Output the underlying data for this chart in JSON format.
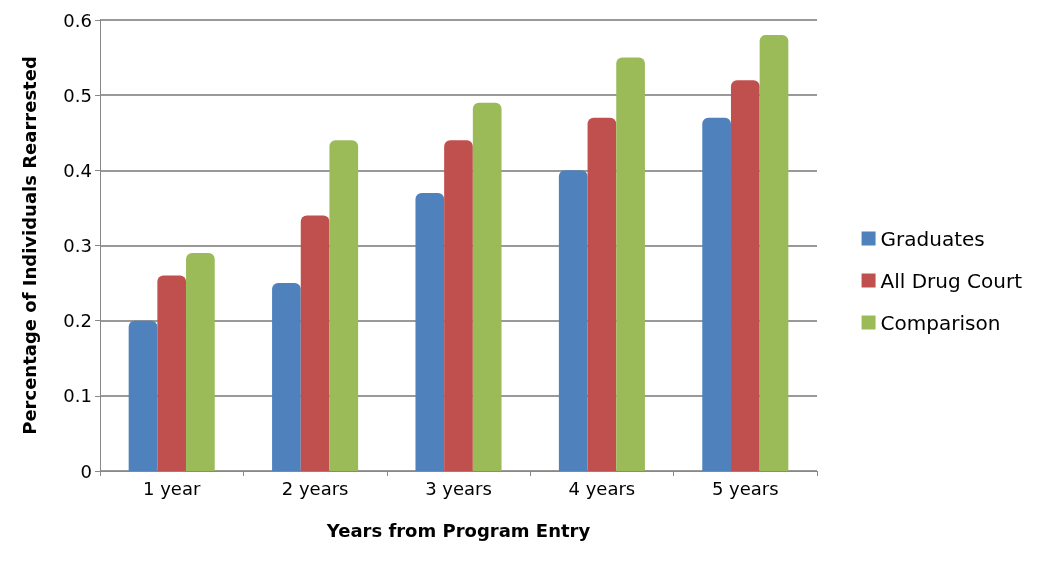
{
  "chart_data": {
    "type": "bar",
    "xlabel": "Years from Program Entry",
    "ylabel": "Percentage of Individuals Rearrested",
    "categories": [
      "1 year",
      "2 years",
      "3 years",
      "4 years",
      "5 years"
    ],
    "series": [
      {
        "name": "Graduates",
        "color": "#4f81bd",
        "values": [
          0.2,
          0.25,
          0.37,
          0.4,
          0.47
        ]
      },
      {
        "name": "All Drug Court",
        "color": "#c0504d",
        "values": [
          0.26,
          0.34,
          0.44,
          0.47,
          0.52
        ]
      },
      {
        "name": "Comparison",
        "color": "#9bbb59",
        "values": [
          0.29,
          0.44,
          0.49,
          0.55,
          0.58
        ]
      }
    ],
    "ylim": [
      0,
      0.6
    ],
    "yticks": [
      0,
      0.1,
      0.2,
      0.3,
      0.4,
      0.5,
      0.6
    ],
    "grid": "y",
    "legend": "right"
  }
}
